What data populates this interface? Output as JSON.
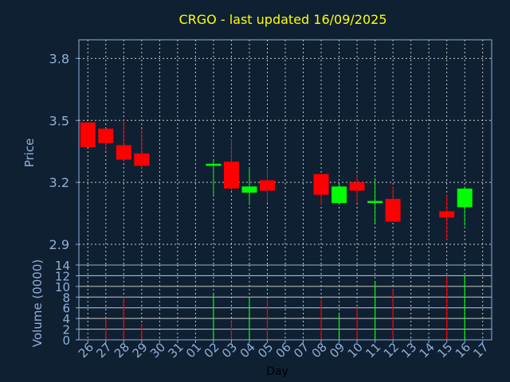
{
  "title": "CRGO - last updated 16/09/2025",
  "colors": {
    "background": "#0f2033",
    "title": "#ffff00",
    "axis_text": "#8fb0d6",
    "frame": "#8fb0d6",
    "grid": "#c8c8c8",
    "up": "#00ff00",
    "down": "#ff0000"
  },
  "chart_data": {
    "type": "candlestick",
    "x": [
      "26",
      "27",
      "28",
      "29",
      "30",
      "31",
      "01",
      "02",
      "03",
      "04",
      "05",
      "06",
      "07",
      "08",
      "09",
      "10",
      "11",
      "12",
      "13",
      "14",
      "15",
      "16",
      "17"
    ],
    "xlabel": "Day",
    "price": {
      "ylabel": "Price",
      "ylim": [
        2.8,
        3.89
      ],
      "yticks": [
        2.9,
        3.2,
        3.5,
        3.8
      ],
      "candles": [
        {
          "x": "26",
          "open": 3.49,
          "high": 3.49,
          "low": 3.37,
          "close": 3.37
        },
        {
          "x": "27",
          "open": 3.46,
          "high": 3.46,
          "low": 3.35,
          "close": 3.39
        },
        {
          "x": "28",
          "open": 3.38,
          "high": 3.5,
          "low": 3.3,
          "close": 3.31
        },
        {
          "x": "29",
          "open": 3.34,
          "high": 3.46,
          "low": 3.26,
          "close": 3.28
        },
        {
          "x": "02",
          "open": 3.28,
          "high": 3.31,
          "low": 3.14,
          "close": 3.29
        },
        {
          "x": "03",
          "open": 3.3,
          "high": 3.41,
          "low": 3.16,
          "close": 3.17
        },
        {
          "x": "04",
          "open": 3.15,
          "high": 3.27,
          "low": 3.09,
          "close": 3.18
        },
        {
          "x": "05",
          "open": 3.21,
          "high": 3.27,
          "low": 3.1,
          "close": 3.16
        },
        {
          "x": "08",
          "open": 3.24,
          "high": 3.24,
          "low": 3.09,
          "close": 3.14
        },
        {
          "x": "09",
          "open": 3.1,
          "high": 3.19,
          "low": 3.1,
          "close": 3.18
        },
        {
          "x": "10",
          "open": 3.2,
          "high": 3.24,
          "low": 3.1,
          "close": 3.16
        },
        {
          "x": "11",
          "open": 3.1,
          "high": 3.22,
          "low": 3.0,
          "close": 3.11
        },
        {
          "x": "12",
          "open": 3.12,
          "high": 3.18,
          "low": 3.01,
          "close": 3.01
        },
        {
          "x": "15",
          "open": 3.06,
          "high": 3.14,
          "low": 2.92,
          "close": 3.03
        },
        {
          "x": "16",
          "open": 3.08,
          "high": 3.18,
          "low": 2.99,
          "close": 3.17
        }
      ]
    },
    "volume": {
      "ylabel": "Volume (0000)",
      "ylim": [
        0,
        14
      ],
      "yticks": [
        0,
        2,
        4,
        6,
        8,
        10,
        12,
        14
      ],
      "bars": [
        {
          "x": "27",
          "value": 4,
          "direction": "down"
        },
        {
          "x": "28",
          "value": 8,
          "direction": "down"
        },
        {
          "x": "29",
          "value": 3,
          "direction": "down"
        },
        {
          "x": "02",
          "value": 8.5,
          "direction": "up"
        },
        {
          "x": "03",
          "value": 3.5,
          "direction": "down"
        },
        {
          "x": "04",
          "value": 8,
          "direction": "up"
        },
        {
          "x": "05",
          "value": 7.5,
          "direction": "down"
        },
        {
          "x": "08",
          "value": 7.5,
          "direction": "down"
        },
        {
          "x": "09",
          "value": 5,
          "direction": "up"
        },
        {
          "x": "10",
          "value": 6,
          "direction": "down"
        },
        {
          "x": "11",
          "value": 11,
          "direction": "up"
        },
        {
          "x": "12",
          "value": 9.5,
          "direction": "down"
        },
        {
          "x": "15",
          "value": 11.8,
          "direction": "down"
        },
        {
          "x": "16",
          "value": 12,
          "direction": "up"
        }
      ]
    },
    "grid": true
  }
}
